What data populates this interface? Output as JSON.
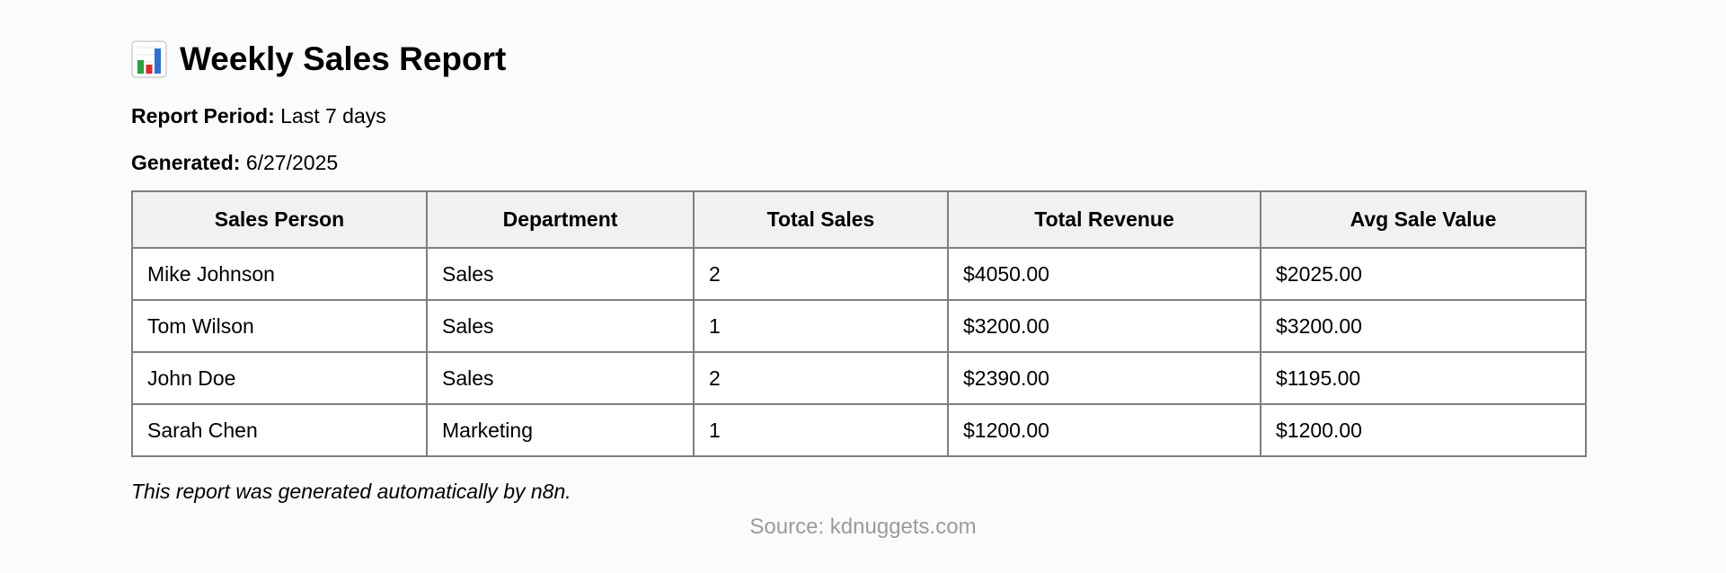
{
  "report": {
    "title": "Weekly Sales Report",
    "title_icon": "bar-chart-icon",
    "period_label": "Report Period:",
    "period_value": " Last 7 days",
    "generated_label": "Generated:",
    "generated_value": " 6/27/2025",
    "footer_note": "This report was generated automatically by n8n."
  },
  "table": {
    "headers": [
      "Sales Person",
      "Department",
      "Total Sales",
      "Total Revenue",
      "Avg Sale Value"
    ],
    "rows": [
      [
        "Mike Johnson",
        "Sales",
        "2",
        "$4050.00",
        "$2025.00"
      ],
      [
        "Tom Wilson",
        "Sales",
        "1",
        "$3200.00",
        "$3200.00"
      ],
      [
        "John Doe",
        "Sales",
        "2",
        "$2390.00",
        "$1195.00"
      ],
      [
        "Sarah Chen",
        "Marketing",
        "1",
        "$1200.00",
        "$1200.00"
      ]
    ]
  },
  "source": "Source: kdnuggets.com",
  "colors": {
    "background": "#fafbfd",
    "header_fill": "#f1f1f1",
    "border": "#7f7f7f",
    "source_text": "#9b9b9b",
    "icon_red": "#d62b2b",
    "icon_green": "#2f9e3e",
    "icon_blue": "#2f6fd1"
  }
}
